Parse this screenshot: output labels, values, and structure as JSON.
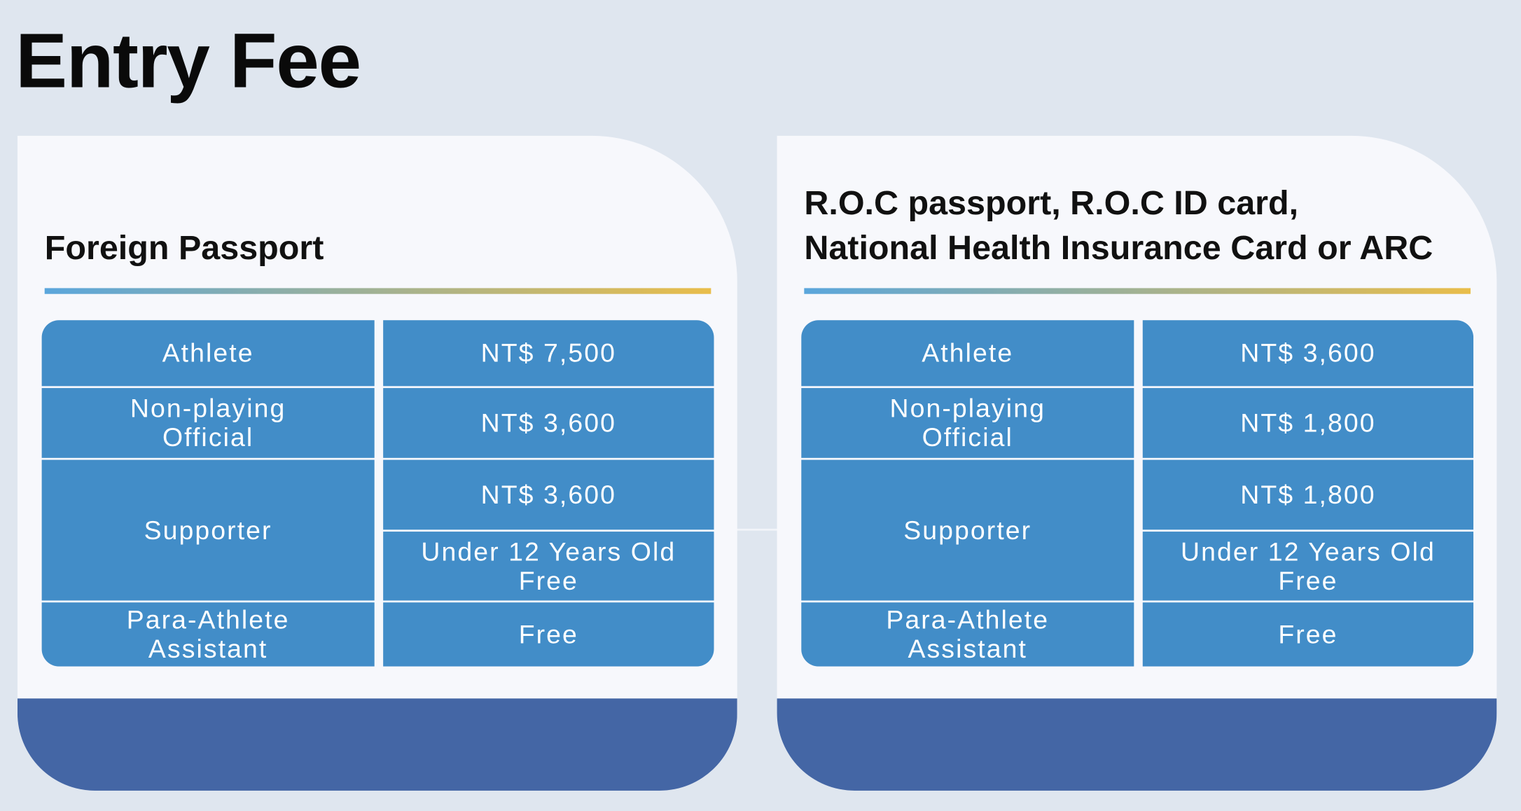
{
  "header": {
    "title": "Entry Fee"
  },
  "cards": [
    {
      "title": [
        "Foreign Passport"
      ],
      "rows": [
        {
          "label": [
            "Athlete"
          ],
          "values": [
            [
              "NT$ 7,500"
            ]
          ]
        },
        {
          "label": [
            "Non-playing",
            "Official"
          ],
          "values": [
            [
              "NT$ 3,600"
            ]
          ]
        },
        {
          "label": [
            "Supporter"
          ],
          "values": [
            [
              "NT$ 3,600"
            ],
            [
              "Under 12 Years Old",
              "Free"
            ]
          ]
        },
        {
          "label": [
            "Para-Athlete",
            "Assistant"
          ],
          "values": [
            [
              "Free"
            ]
          ]
        }
      ]
    },
    {
      "title": [
        "R.O.C passport, R.O.C ID card,",
        "National Health Insurance Card or ARC"
      ],
      "rows": [
        {
          "label": [
            "Athlete"
          ],
          "values": [
            [
              "NT$ 3,600"
            ]
          ]
        },
        {
          "label": [
            "Non-playing",
            "Official"
          ],
          "values": [
            [
              "NT$ 1,800"
            ]
          ]
        },
        {
          "label": [
            "Supporter"
          ],
          "values": [
            [
              "NT$ 1,800"
            ],
            [
              "Under 12 Years Old",
              "Free"
            ]
          ]
        },
        {
          "label": [
            "Para-Athlete",
            "Assistant"
          ],
          "values": [
            [
              "Free"
            ]
          ]
        }
      ]
    }
  ]
}
